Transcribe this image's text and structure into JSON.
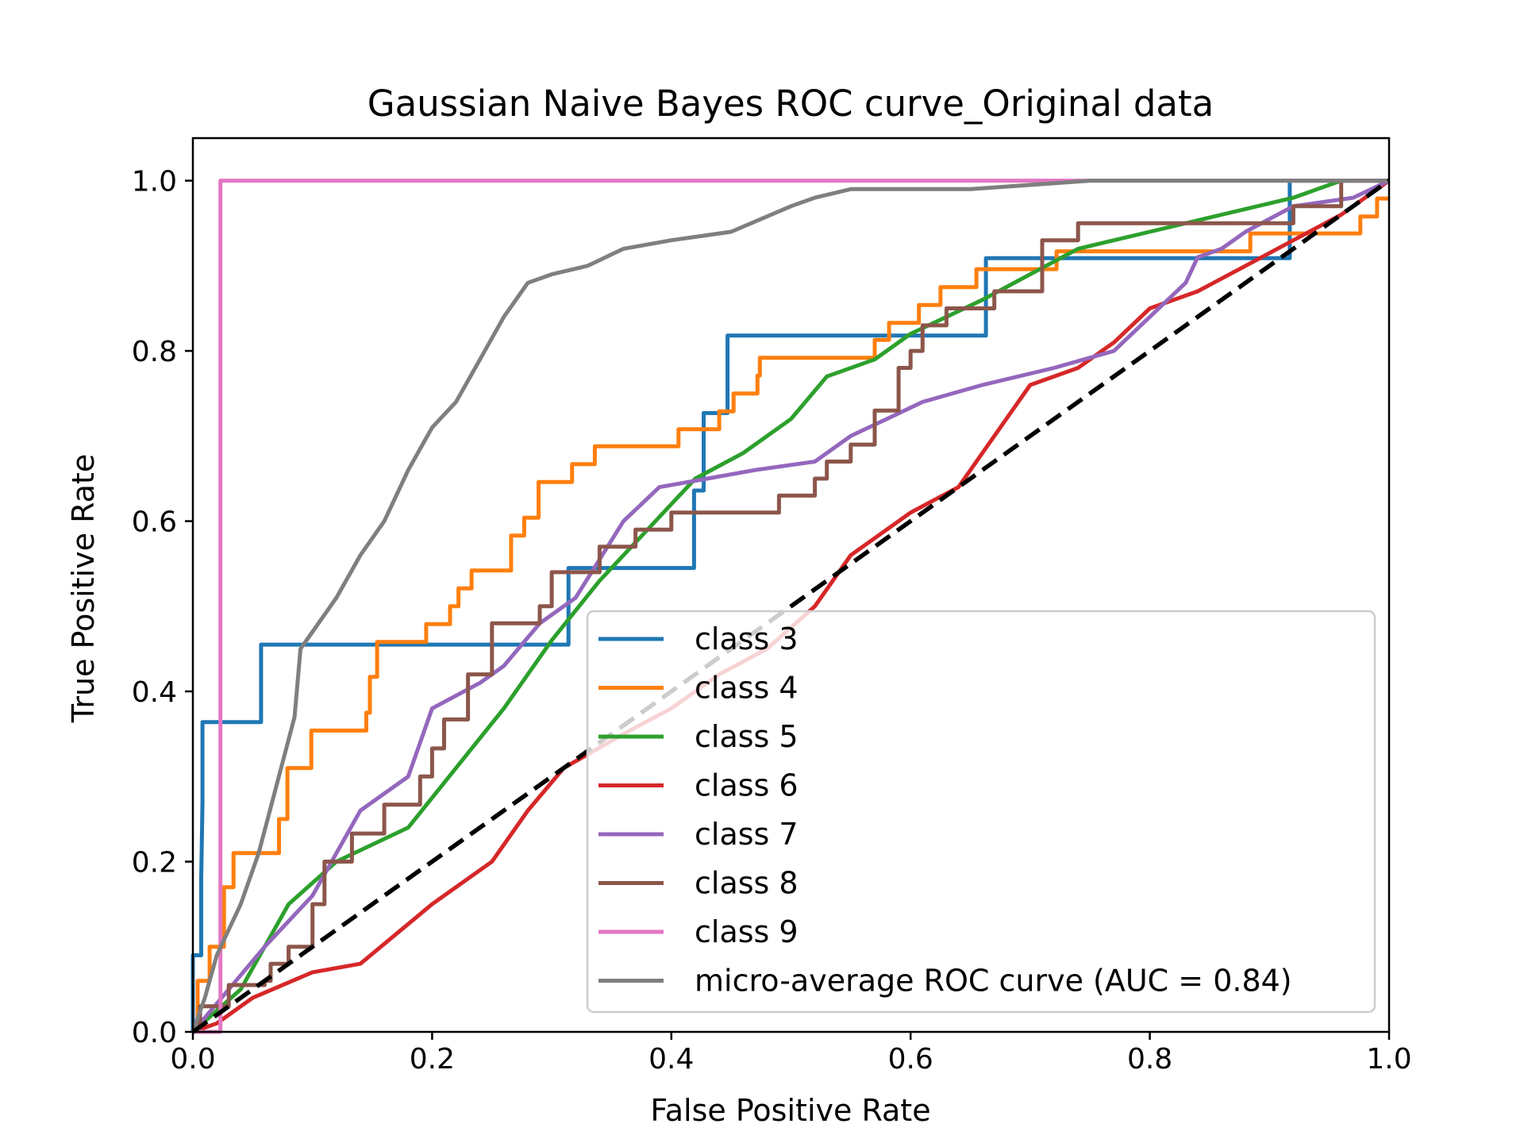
{
  "chart_data": {
    "type": "line",
    "title": "Gaussian Naive Bayes ROC curve_Original data",
    "xlabel": "False Positive Rate",
    "ylabel": "True Positive Rate",
    "xlim": [
      0.0,
      1.0
    ],
    "ylim": [
      0.0,
      1.05
    ],
    "x_ticks": [
      "0.0",
      "0.2",
      "0.4",
      "0.6",
      "0.8",
      "1.0"
    ],
    "y_ticks": [
      "0.0",
      "0.2",
      "0.4",
      "0.6",
      "0.8",
      "1.0"
    ],
    "grid": false,
    "legend_position": "lower-right",
    "series": [
      {
        "name": "class 3",
        "color": "#1f77b4",
        "step": true,
        "points": [
          [
            0,
            0
          ],
          [
            0,
            0.09
          ],
          [
            0.007,
            0.09
          ],
          [
            0.007,
            0.18
          ],
          [
            0.008,
            0.27
          ],
          [
            0.008,
            0.364
          ],
          [
            0.057,
            0.364
          ],
          [
            0.057,
            0.455
          ],
          [
            0.314,
            0.455
          ],
          [
            0.314,
            0.545
          ],
          [
            0.419,
            0.545
          ],
          [
            0.419,
            0.636
          ],
          [
            0.427,
            0.636
          ],
          [
            0.427,
            0.727
          ],
          [
            0.447,
            0.727
          ],
          [
            0.447,
            0.818
          ],
          [
            0.663,
            0.818
          ],
          [
            0.663,
            0.909
          ],
          [
            0.917,
            0.909
          ],
          [
            0.917,
            1.0
          ],
          [
            1.0,
            1.0
          ]
        ]
      },
      {
        "name": "class 4",
        "color": "#ff7f0e",
        "step": true,
        "points": [
          [
            0,
            0
          ],
          [
            0.004,
            0
          ],
          [
            0.004,
            0.06
          ],
          [
            0.014,
            0.06
          ],
          [
            0.014,
            0.1
          ],
          [
            0.026,
            0.1
          ],
          [
            0.026,
            0.17
          ],
          [
            0.034,
            0.17
          ],
          [
            0.034,
            0.21
          ],
          [
            0.072,
            0.21
          ],
          [
            0.072,
            0.25
          ],
          [
            0.079,
            0.25
          ],
          [
            0.079,
            0.31
          ],
          [
            0.099,
            0.31
          ],
          [
            0.099,
            0.354
          ],
          [
            0.145,
            0.354
          ],
          [
            0.145,
            0.375
          ],
          [
            0.148,
            0.375
          ],
          [
            0.148,
            0.417
          ],
          [
            0.154,
            0.417
          ],
          [
            0.154,
            0.458
          ],
          [
            0.195,
            0.458
          ],
          [
            0.195,
            0.479
          ],
          [
            0.215,
            0.479
          ],
          [
            0.215,
            0.5
          ],
          [
            0.222,
            0.5
          ],
          [
            0.222,
            0.521
          ],
          [
            0.233,
            0.521
          ],
          [
            0.233,
            0.542
          ],
          [
            0.266,
            0.542
          ],
          [
            0.266,
            0.583
          ],
          [
            0.277,
            0.583
          ],
          [
            0.277,
            0.604
          ],
          [
            0.289,
            0.604
          ],
          [
            0.289,
            0.646
          ],
          [
            0.317,
            0.646
          ],
          [
            0.317,
            0.667
          ],
          [
            0.336,
            0.667
          ],
          [
            0.336,
            0.688
          ],
          [
            0.406,
            0.688
          ],
          [
            0.406,
            0.708
          ],
          [
            0.44,
            0.708
          ],
          [
            0.44,
            0.729
          ],
          [
            0.452,
            0.729
          ],
          [
            0.452,
            0.75
          ],
          [
            0.472,
            0.75
          ],
          [
            0.472,
            0.771
          ],
          [
            0.474,
            0.771
          ],
          [
            0.474,
            0.792
          ],
          [
            0.57,
            0.792
          ],
          [
            0.57,
            0.813
          ],
          [
            0.582,
            0.813
          ],
          [
            0.582,
            0.833
          ],
          [
            0.607,
            0.833
          ],
          [
            0.607,
            0.854
          ],
          [
            0.625,
            0.854
          ],
          [
            0.625,
            0.875
          ],
          [
            0.655,
            0.875
          ],
          [
            0.655,
            0.896
          ],
          [
            0.722,
            0.896
          ],
          [
            0.722,
            0.917
          ],
          [
            0.884,
            0.917
          ],
          [
            0.884,
            0.938
          ],
          [
            0.976,
            0.938
          ],
          [
            0.976,
            0.958
          ],
          [
            0.99,
            0.958
          ],
          [
            0.99,
            0.979
          ],
          [
            1.0,
            0.979
          ]
        ]
      },
      {
        "name": "class 5",
        "color": "#2ca02c",
        "step": false,
        "points": [
          [
            0,
            0
          ],
          [
            0.04,
            0.05
          ],
          [
            0.06,
            0.1
          ],
          [
            0.08,
            0.15
          ],
          [
            0.12,
            0.2
          ],
          [
            0.18,
            0.24
          ],
          [
            0.22,
            0.31
          ],
          [
            0.26,
            0.38
          ],
          [
            0.3,
            0.46
          ],
          [
            0.34,
            0.53
          ],
          [
            0.38,
            0.59
          ],
          [
            0.42,
            0.65
          ],
          [
            0.46,
            0.68
          ],
          [
            0.5,
            0.72
          ],
          [
            0.53,
            0.77
          ],
          [
            0.57,
            0.79
          ],
          [
            0.6,
            0.82
          ],
          [
            0.66,
            0.86
          ],
          [
            0.7,
            0.89
          ],
          [
            0.74,
            0.92
          ],
          [
            0.8,
            0.94
          ],
          [
            0.86,
            0.96
          ],
          [
            0.92,
            0.98
          ],
          [
            0.96,
            1.0
          ],
          [
            1.0,
            1.0
          ]
        ]
      },
      {
        "name": "class 6",
        "color": "#d62728",
        "step": false,
        "points": [
          [
            0,
            0
          ],
          [
            0.02,
            0.01
          ],
          [
            0.05,
            0.04
          ],
          [
            0.1,
            0.07
          ],
          [
            0.14,
            0.08
          ],
          [
            0.2,
            0.15
          ],
          [
            0.25,
            0.2
          ],
          [
            0.28,
            0.26
          ],
          [
            0.31,
            0.31
          ],
          [
            0.36,
            0.35
          ],
          [
            0.4,
            0.38
          ],
          [
            0.44,
            0.42
          ],
          [
            0.48,
            0.45
          ],
          [
            0.52,
            0.5
          ],
          [
            0.55,
            0.56
          ],
          [
            0.6,
            0.61
          ],
          [
            0.64,
            0.64
          ],
          [
            0.67,
            0.7
          ],
          [
            0.7,
            0.76
          ],
          [
            0.74,
            0.78
          ],
          [
            0.77,
            0.81
          ],
          [
            0.8,
            0.85
          ],
          [
            0.84,
            0.87
          ],
          [
            0.88,
            0.9
          ],
          [
            0.92,
            0.93
          ],
          [
            0.96,
            0.96
          ],
          [
            1.0,
            1.0
          ]
        ]
      },
      {
        "name": "class 7",
        "color": "#9467bd",
        "step": false,
        "points": [
          [
            0,
            0
          ],
          [
            0.06,
            0.1
          ],
          [
            0.1,
            0.16
          ],
          [
            0.14,
            0.26
          ],
          [
            0.18,
            0.3
          ],
          [
            0.2,
            0.38
          ],
          [
            0.24,
            0.41
          ],
          [
            0.26,
            0.43
          ],
          [
            0.29,
            0.48
          ],
          [
            0.32,
            0.51
          ],
          [
            0.36,
            0.6
          ],
          [
            0.39,
            0.64
          ],
          [
            0.43,
            0.65
          ],
          [
            0.47,
            0.66
          ],
          [
            0.52,
            0.67
          ],
          [
            0.55,
            0.7
          ],
          [
            0.58,
            0.72
          ],
          [
            0.61,
            0.74
          ],
          [
            0.66,
            0.76
          ],
          [
            0.72,
            0.78
          ],
          [
            0.77,
            0.8
          ],
          [
            0.8,
            0.84
          ],
          [
            0.83,
            0.88
          ],
          [
            0.84,
            0.91
          ],
          [
            0.86,
            0.92
          ],
          [
            0.88,
            0.94
          ],
          [
            0.92,
            0.97
          ],
          [
            0.97,
            0.98
          ],
          [
            1.0,
            1.0
          ]
        ]
      },
      {
        "name": "class 8",
        "color": "#8c564b",
        "step": true,
        "points": [
          [
            0,
            0
          ],
          [
            0.006,
            0
          ],
          [
            0.006,
            0.03
          ],
          [
            0.03,
            0.03
          ],
          [
            0.03,
            0.055
          ],
          [
            0.06,
            0.055
          ],
          [
            0.06,
            0.06
          ],
          [
            0.065,
            0.06
          ],
          [
            0.065,
            0.08
          ],
          [
            0.08,
            0.08
          ],
          [
            0.08,
            0.1
          ],
          [
            0.1,
            0.1
          ],
          [
            0.1,
            0.15
          ],
          [
            0.11,
            0.15
          ],
          [
            0.11,
            0.2
          ],
          [
            0.133,
            0.2
          ],
          [
            0.133,
            0.233
          ],
          [
            0.16,
            0.233
          ],
          [
            0.16,
            0.267
          ],
          [
            0.19,
            0.267
          ],
          [
            0.19,
            0.3
          ],
          [
            0.2,
            0.3
          ],
          [
            0.2,
            0.333
          ],
          [
            0.21,
            0.333
          ],
          [
            0.21,
            0.367
          ],
          [
            0.23,
            0.367
          ],
          [
            0.23,
            0.42
          ],
          [
            0.25,
            0.42
          ],
          [
            0.25,
            0.48
          ],
          [
            0.29,
            0.48
          ],
          [
            0.29,
            0.5
          ],
          [
            0.3,
            0.5
          ],
          [
            0.3,
            0.54
          ],
          [
            0.34,
            0.54
          ],
          [
            0.34,
            0.57
          ],
          [
            0.37,
            0.57
          ],
          [
            0.37,
            0.59
          ],
          [
            0.4,
            0.59
          ],
          [
            0.4,
            0.61
          ],
          [
            0.49,
            0.61
          ],
          [
            0.49,
            0.63
          ],
          [
            0.52,
            0.63
          ],
          [
            0.52,
            0.65
          ],
          [
            0.53,
            0.65
          ],
          [
            0.53,
            0.67
          ],
          [
            0.55,
            0.67
          ],
          [
            0.55,
            0.69
          ],
          [
            0.57,
            0.69
          ],
          [
            0.57,
            0.73
          ],
          [
            0.59,
            0.73
          ],
          [
            0.59,
            0.78
          ],
          [
            0.6,
            0.78
          ],
          [
            0.6,
            0.8
          ],
          [
            0.61,
            0.8
          ],
          [
            0.61,
            0.83
          ],
          [
            0.63,
            0.83
          ],
          [
            0.63,
            0.85
          ],
          [
            0.67,
            0.85
          ],
          [
            0.67,
            0.87
          ],
          [
            0.71,
            0.87
          ],
          [
            0.71,
            0.93
          ],
          [
            0.74,
            0.93
          ],
          [
            0.74,
            0.95
          ],
          [
            0.92,
            0.95
          ],
          [
            0.92,
            0.97
          ],
          [
            0.96,
            0.97
          ],
          [
            0.96,
            1.0
          ],
          [
            1.0,
            1.0
          ]
        ]
      },
      {
        "name": "class 9",
        "color": "#e377c2",
        "step": true,
        "points": [
          [
            0,
            0
          ],
          [
            0.023,
            0
          ],
          [
            0.023,
            1.0
          ],
          [
            1.0,
            1.0
          ]
        ]
      },
      {
        "name": "micro-average ROC curve (AUC = 0.84)",
        "color": "#7f7f7f",
        "step": false,
        "points": [
          [
            0,
            0
          ],
          [
            0.01,
            0.04
          ],
          [
            0.02,
            0.09
          ],
          [
            0.04,
            0.15
          ],
          [
            0.055,
            0.21
          ],
          [
            0.07,
            0.29
          ],
          [
            0.085,
            0.37
          ],
          [
            0.09,
            0.45
          ],
          [
            0.1,
            0.47
          ],
          [
            0.12,
            0.51
          ],
          [
            0.14,
            0.56
          ],
          [
            0.16,
            0.6
          ],
          [
            0.18,
            0.66
          ],
          [
            0.2,
            0.71
          ],
          [
            0.22,
            0.74
          ],
          [
            0.24,
            0.79
          ],
          [
            0.26,
            0.84
          ],
          [
            0.28,
            0.88
          ],
          [
            0.3,
            0.89
          ],
          [
            0.33,
            0.9
          ],
          [
            0.36,
            0.92
          ],
          [
            0.4,
            0.93
          ],
          [
            0.45,
            0.94
          ],
          [
            0.5,
            0.97
          ],
          [
            0.52,
            0.98
          ],
          [
            0.55,
            0.99
          ],
          [
            0.65,
            0.99
          ],
          [
            0.75,
            1.0
          ],
          [
            1.0,
            1.0
          ]
        ]
      },
      {
        "name": "",
        "color": "#000000",
        "dashed": true,
        "in_legend": false,
        "points": [
          [
            0,
            0
          ],
          [
            1,
            1
          ]
        ]
      }
    ]
  }
}
